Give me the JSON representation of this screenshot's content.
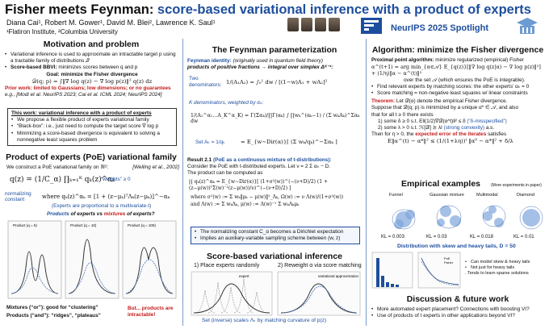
{
  "header": {
    "title_a": "Fisher meets Feynman:",
    "title_b": "score-based variational inference with a product of experts",
    "authors": "Diana Cai¹, Robert M. Gower¹, David M. Blei², Lawrence K. Saul¹",
    "affiliations": "¹Flatiron Institute, ²Columbia University",
    "spotlight": "NeurIPS 2025 Spotlight"
  },
  "col1": {
    "h1": "Motivation and problem",
    "b1": "Variational inference is used to approximate an intractable target p using a tractable family of distributions 𝒬",
    "b2_bold": "Score-based BBVI:",
    "b2": "minimizes scores between q and p",
    "goal": "Goal: minimize the Fisher divergence",
    "eq_fisher": "𝒟(q; p) = ∫‖∇ log q(z) − ∇ log p(z)‖² q(z) dz",
    "prior_bold": "Prior work: limited to Gaussians; low dimensions; or no guarantees",
    "prior_refs": "e.g., [Modi et al. NeurIPS 2023; Cai et al. ICML 2024; NeurIPS 2024]",
    "box_title": "This work: variational inference with a product of experts",
    "box_b1": "We propose a flexible product of experts variational family",
    "box_b2": "“Black-box”: i.e., just need to compute the target score ∇ log p",
    "box_b3": "Minimizing a score-based divergence is equivalent to solving a nonnegative least squares problem",
    "h2": "Product of experts (PoE) variational family",
    "poe_intro": "We construct a PoE variational family on ℝᴰ:",
    "poe_ref": "[Welling et al., 2002]",
    "eq_poe": "q(z) = (1/C_α) ∏ₖ₌₁ᴷ qₖ(z)^αₖ",
    "weights": "“weights” ≥ 0",
    "norm": "normalizing constant",
    "eq_expert": "where qₖ(z)^αₖ = [1 + (z−μₖ)ᵀΛₖ(z−μₖ)]^−αₖ",
    "prop": "(Experts are proportional to a multivariate-t)",
    "products_q_a": "Products",
    "products_q_b": "of experts vs",
    "products_q_c": "mixtures",
    "products_q_d": "of experts?",
    "mix_text": "Mixtures (“or”): good for “clustering”",
    "prod_text": "Products (“and”): “ridges”, “plateaus”",
    "but_text": "But... products are intractable!",
    "panel_titles": [
      "Product (q = 5)",
      "Product (q = 10)",
      "Product (q = 100)"
    ]
  },
  "col2": {
    "h1": "The Feynman parameterization",
    "fid_bold": "Feynman identity:",
    "fid_rest": "(originally used in quantum field theory)",
    "fid_line": "products of positive fractions → integral over simplex Δᴷ⁻¹:",
    "two_den": "Two denominators:",
    "eq_two": "1/(A₁A₂) = ∫₀¹ dw / [(1−w)A₁ + wA₂]²",
    "kden": "K denominators, weighted by αₖ:",
    "eq_k": "1/(A₁^α₁…A_K^α_K) = Γ(Σαₖ)/∏Γ(αₖ) ∫ ∏wₖ^(αₖ−1) / (Σ wₖAₖ)^Σαₖ dw",
    "set": "Set Aₖ = 1/qₖ",
    "eq_set": "= E_{w∼Dir(α)}[ (Σ wₖ/qₖ)^−Σαₖ ]",
    "res_bold": "Result 2.1",
    "res_blue": "(PoE as a continuous mixture of t-distributions):",
    "res_line2": "Consider the PoE with t-distributed experts. Let ν = 2 Σ αₖ − D.",
    "res_line3": "The product can be computed as",
    "eq_res": "∏ qₖ(z)^αₖ = E_{w∼Dir(α)}[ (1+σ²(w))^(−(ν+D)/2) (1 + (z−μ(w))ᵀΣ(w)⁻¹(z−μ(w))/ν)^(−(ν+D)/2) ]",
    "where1": "where σ²(w) := Σ wₖ‖μₖ − μ(w)‖²_Λₖ,  Ω(w) := ν Λ(w)/(1+σ²(w))",
    "where2": "and Λ(w) := Σ wₖΛₖ,  μ(w) := Λ(w)⁻¹ Σ wₖΛₖμₖ",
    "b1": "The normalizing constant C_α becomes a Dirichlet expectation",
    "b2": "Implies an auxiliary-variable sampling scheme between (w, z)",
    "h2": "Score-based variational inference",
    "step1": "1) Place experts randomly",
    "step2": "2) Reweight α via score matching",
    "leg_expert": "expert",
    "leg_va": "variational approximation",
    "caption": "Set (inverse) scales Λₖ by matching curvature of p(z)"
  },
  "col3": {
    "h1": "Algorithm: minimize the Fisher divergence",
    "prox_bold": "Proximal point algorithm:",
    "prox_rest": "minimize regularized (empirical) Fisher",
    "eq_prox": "α^(t+1) = arg min_{α∈𝒜} E_{q(z)}[‖∇ log q(z|α) − ∇ log p(z)‖²] + (1/η)‖α − α^(t)‖²",
    "over": "over the set 𝒜 (which ensures the PoE is integrable).",
    "b1": "Find relevant experts by matching scores: the other experts’ αₖ = 0",
    "b2": "Score matching = non-negative least squares w/ linear constraints",
    "thm_bold": "Theorem:",
    "thm1": "Let 𝒟̂(α) denote the empirical Fisher divergence.",
    "thm2": "Suppose that 𝒟̂(q; p) is minimized by a unique α* ∈ 𝒜, and also",
    "thm3": "that for all t ≥ 0 there exists",
    "thm4": "1) some δ ≥ 0 s.t. E‖(1/2)∇𝒟̂(α^t)‖² ≤ δ",
    "thm4b": "(“δ-misspecified”)",
    "thm5": "2) some λ > 0 s.t. ℋ[𝒟̂] ⪰ λI",
    "thm5b": "(strong convexity)",
    "thm5c": "a.s.",
    "thm6a": "Then for η > 0, the",
    "thm6b": "expected error of the iterates",
    "thm6c": "satisfies",
    "eq_err": "E‖α^(t) − α*‖² ≤ (1/(1+λη))ᵗ ‖α⁰ − α*‖² + δ/λ",
    "h2": "Empirical examples",
    "more": "(More experiments in paper)",
    "ex_titles": [
      "Funnel",
      "Gaussian mixture",
      "Multimodal",
      "Diamond"
    ],
    "ex_kl": [
      "KL = 0.003",
      "KL = 0.03",
      "KL = 0.018",
      "KL = 0.01"
    ],
    "dist": "Distribution with skew and heavy tails, D = 50",
    "leg1": "PoE",
    "leg2": "Fisher",
    "bullets": [
      "Can model skew & heavy tails",
      "Not just for heavy tails",
      ". Tends to learn sparse solutions"
    ],
    "h3": "Discussion & future work",
    "f1": "More automated expert placement? Connections with boosting VI?",
    "f2": "Use of products of t experts in other applications beyond VI?"
  },
  "colors": {
    "blue": "#1d4e9e",
    "red": "#c41a1a",
    "border": "#7a9ccc"
  }
}
